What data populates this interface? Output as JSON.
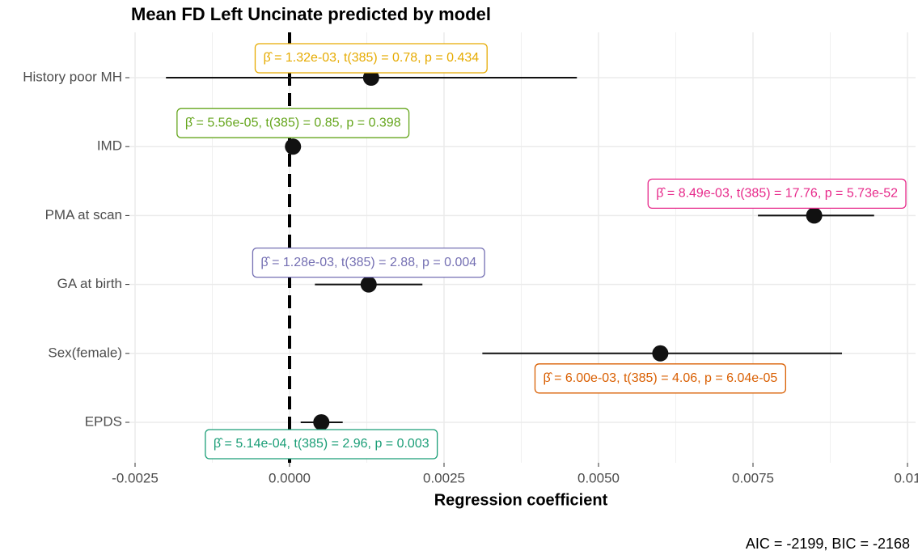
{
  "chart_data": {
    "type": "coefficient",
    "title": "Mean FD Left Uncinate predicted by model",
    "x_label": "Regression coefficient",
    "caption": "AIC = -2199, BIC = -2168",
    "categories": [
      "History poor MH",
      "IMD",
      "PMA at scan",
      "GA at birth",
      "Sex(female)",
      "EPDS"
    ],
    "values": [
      0.00132,
      5.56e-05,
      0.00849,
      0.00128,
      0.006,
      0.000514
    ],
    "ci_low": [
      -0.002,
      -7.24e-05,
      0.00758,
      0.00041,
      0.00312,
      0.00018
    ],
    "ci_high": [
      0.00465,
      0.000184,
      0.00946,
      0.00215,
      0.00894,
      0.00086
    ],
    "annotations": [
      "β̂ = 1.32e-03,  t(385) = 0.78,  p = 0.434",
      "β̂ = 5.56e-05,  t(385) = 0.85,  p = 0.398",
      "β̂ = 8.49e-03,  t(385) = 17.76,  p = 5.73e-52",
      "β̂ = 1.28e-03,  t(385) = 2.88,  p = 0.004",
      "β̂ = 6.00e-03,  t(385) = 4.06,  p = 6.04e-05",
      "β̂ = 5.14e-04,  t(385) = 2.96,  p = 0.003"
    ],
    "colors": [
      "#e6ab02",
      "#66a61e",
      "#e7298a",
      "#7570b3",
      "#d95f02",
      "#1b9e77"
    ],
    "point_color": "#111111",
    "xlim": [
      -0.0025,
      0.01
    ],
    "xticks": [
      -0.0025,
      {
        "value": 0,
        "label": "0.0000"
      },
      0.0025,
      {
        "value": 0.005,
        "label": "0.0050"
      },
      0.0075,
      0.01
    ],
    "vline": 0,
    "grid": true
  }
}
